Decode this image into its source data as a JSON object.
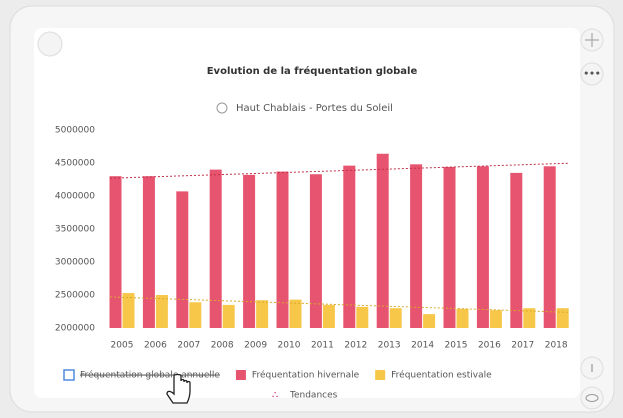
{
  "chart_data": {
    "type": "bar",
    "title": "Evolution de la fréquentation globale",
    "subtitle": "Haut Chablais - Portes du Soleil",
    "categories": [
      "2005",
      "2006",
      "2007",
      "2008",
      "2009",
      "2010",
      "2011",
      "2012",
      "2013",
      "2014",
      "2015",
      "2016",
      "2017",
      "2018"
    ],
    "series": [
      {
        "name": "Fréquentation hivernale",
        "color": "#e6546f",
        "values": [
          4300000,
          4300000,
          4070000,
          4400000,
          4320000,
          4370000,
          4330000,
          4460000,
          4640000,
          4480000,
          4440000,
          4450000,
          4350000,
          4450000
        ]
      },
      {
        "name": "Fréquentation estivale",
        "color": "#f7c74a",
        "values": [
          2530000,
          2500000,
          2390000,
          2350000,
          2420000,
          2430000,
          2350000,
          2320000,
          2300000,
          2210000,
          2290000,
          2270000,
          2300000,
          2300000
        ]
      }
    ],
    "hidden_series": [
      {
        "name": "Fréquentation globale annuelle",
        "color": "#4e8ce0"
      }
    ],
    "trend_label": "Tendances",
    "ylim": [
      2000000,
      5000000
    ],
    "yticks": [
      2000000,
      2500000,
      3000000,
      3500000,
      4000000,
      4500000,
      5000000
    ],
    "grid": false
  }
}
